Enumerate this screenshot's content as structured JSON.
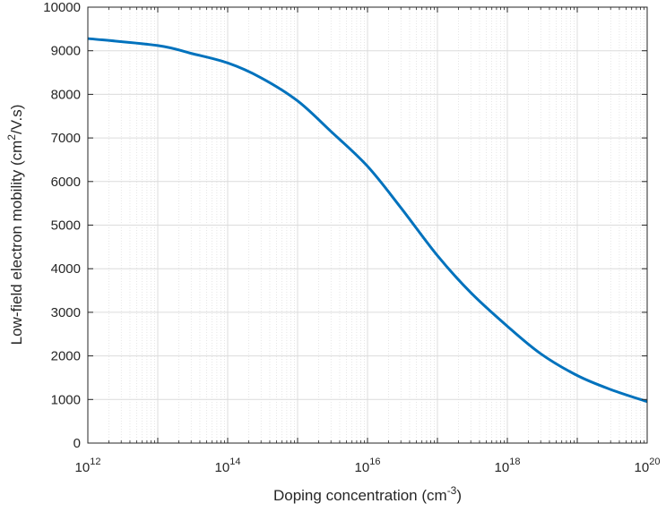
{
  "chart_data": {
    "type": "line",
    "xlabel": {
      "text": "Doping concentration (cm",
      "sup": "-3",
      "tail": ")"
    },
    "ylabel": {
      "text": "Low-field electron mobility (cm",
      "sup": "2",
      "tail": "/V.s)"
    },
    "x_scale": "log",
    "xlim": [
      1000000000000.0,
      1e+20
    ],
    "ylim": [
      0,
      10000
    ],
    "grid": true,
    "minor_grid": true,
    "x_tick_labels": [
      {
        "value": 1000000000000.0,
        "base": "10",
        "exp": "12"
      },
      {
        "value": 100000000000000.0,
        "base": "10",
        "exp": "14"
      },
      {
        "value": 1e+16,
        "base": "10",
        "exp": "16"
      },
      {
        "value": 1e+18,
        "base": "10",
        "exp": "18"
      },
      {
        "value": 1e+20,
        "base": "10",
        "exp": "20"
      }
    ],
    "y_ticks": [
      0,
      1000,
      2000,
      3000,
      4000,
      5000,
      6000,
      7000,
      8000,
      9000,
      10000
    ],
    "series": [
      {
        "color": "#0072BD",
        "x": [
          1000000000000.0,
          10000000000000.0,
          30000000000000.0,
          100000000000000.0,
          300000000000000.0,
          1000000000000000.0,
          3000000000000000.0,
          1e+16,
          3e+16,
          1e+17,
          3e+17,
          1e+18,
          3e+18,
          1e+19,
          3e+19,
          1e+20
        ],
        "y": [
          9280,
          9120,
          8940,
          8720,
          8380,
          7850,
          7150,
          6350,
          5400,
          4300,
          3450,
          2680,
          2050,
          1550,
          1230,
          950
        ]
      }
    ]
  }
}
